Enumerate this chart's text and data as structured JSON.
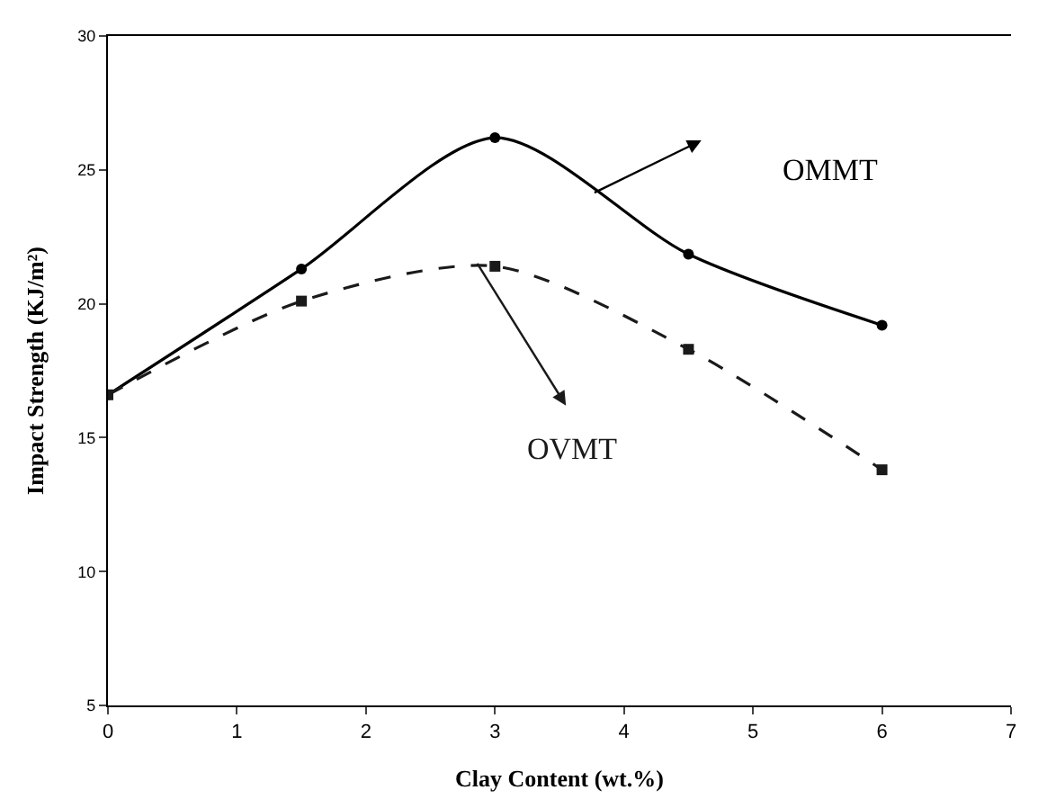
{
  "chart_data": {
    "type": "line",
    "xlabel": "Clay Content (wt.%)",
    "ylabel": "Impact Strength (KJ/m²)",
    "x": [
      0,
      1.5,
      3,
      4.5,
      6
    ],
    "series": [
      {
        "name": "OMMT",
        "color": "#000000",
        "values": [
          16.6,
          21.3,
          26.2,
          21.85,
          19.2
        ],
        "marker": "circle",
        "line_style": "solid"
      },
      {
        "name": "OVMT",
        "color": "#1a1a1a",
        "values": [
          16.6,
          20.1,
          21.4,
          18.3,
          13.8
        ],
        "marker": "square",
        "line_style": "dashed"
      }
    ],
    "xlim": [
      0,
      7
    ],
    "xticks": [
      0,
      1,
      2,
      3,
      4,
      5,
      6,
      7
    ],
    "ylim": [
      5,
      30
    ],
    "yticks": [
      5,
      10,
      15,
      20,
      25,
      30
    ]
  }
}
